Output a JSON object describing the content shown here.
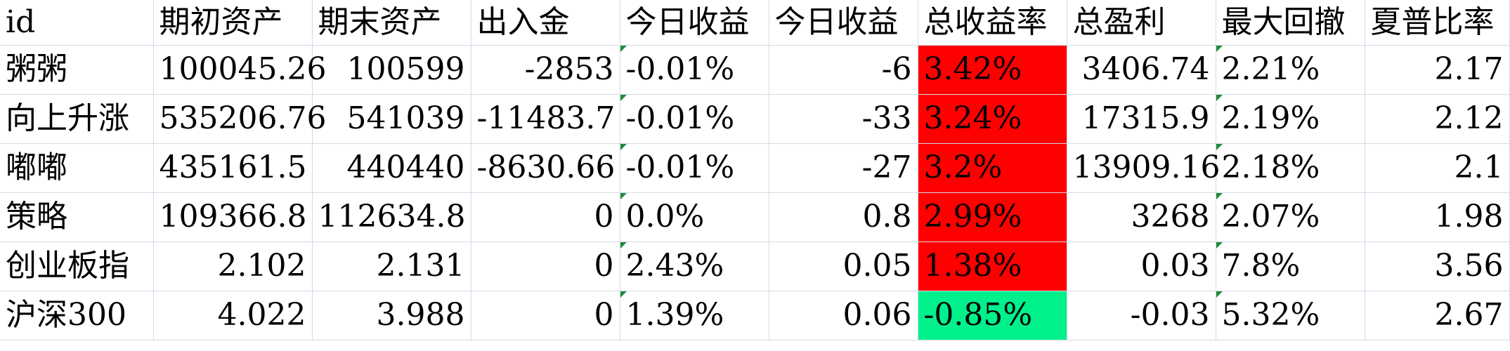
{
  "columns": [
    "id",
    "期初资产",
    "期末资产",
    "出入金",
    "今日收益",
    "今日收益",
    "总收益率",
    "总盈利",
    "最大回撤",
    "夏普比率"
  ],
  "rows": [
    {
      "id": "粥粥",
      "start_assets": "100045.26",
      "end_assets": "100599",
      "flow": "-2853",
      "today_return_rate": "-0.01%",
      "today_return": "-6",
      "total_return_rate": "3.42%",
      "total_profit": "3406.74",
      "max_drawdown": "2.21%",
      "sharpe": "2.17",
      "total_return_color": "#ff0000"
    },
    {
      "id": "向上升涨",
      "start_assets": "535206.76",
      "end_assets": "541039",
      "flow": "-11483.7",
      "today_return_rate": "-0.01%",
      "today_return": "-33",
      "total_return_rate": "3.24%",
      "total_profit": "17315.9",
      "max_drawdown": "2.19%",
      "sharpe": "2.12",
      "total_return_color": "#ff0000"
    },
    {
      "id": "嘟嘟",
      "start_assets": "435161.5",
      "end_assets": "440440",
      "flow": "-8630.66",
      "today_return_rate": "-0.01%",
      "today_return": "-27",
      "total_return_rate": "3.2%",
      "total_profit": "13909.16",
      "max_drawdown": "2.18%",
      "sharpe": "2.1",
      "total_return_color": "#ff0000"
    },
    {
      "id": "策略",
      "start_assets": "109366.8",
      "end_assets": "112634.8",
      "flow": "0",
      "today_return_rate": "0.0%",
      "today_return": "0.8",
      "total_return_rate": "2.99%",
      "total_profit": "3268",
      "max_drawdown": "2.07%",
      "sharpe": "1.98",
      "total_return_color": "#ff0000"
    },
    {
      "id": "创业板指",
      "start_assets": "2.102",
      "end_assets": "2.131",
      "flow": "0",
      "today_return_rate": "2.43%",
      "today_return": "0.05",
      "total_return_rate": "1.38%",
      "total_profit": "0.03",
      "max_drawdown": "7.8%",
      "sharpe": "3.56",
      "total_return_color": "#ff0000"
    },
    {
      "id": "沪深300",
      "start_assets": "4.022",
      "end_assets": "3.988",
      "flow": "0",
      "today_return_rate": "1.39%",
      "today_return": "0.06",
      "total_return_rate": "-0.85%",
      "total_profit": "-0.03",
      "max_drawdown": "5.32%",
      "sharpe": "2.67",
      "total_return_color": "#00f08c"
    }
  ],
  "colors": {
    "gain": "#ff0000",
    "loss": "#00f08c",
    "gridline": "#d4d9e6",
    "error_flag": "#1f8a3c"
  }
}
